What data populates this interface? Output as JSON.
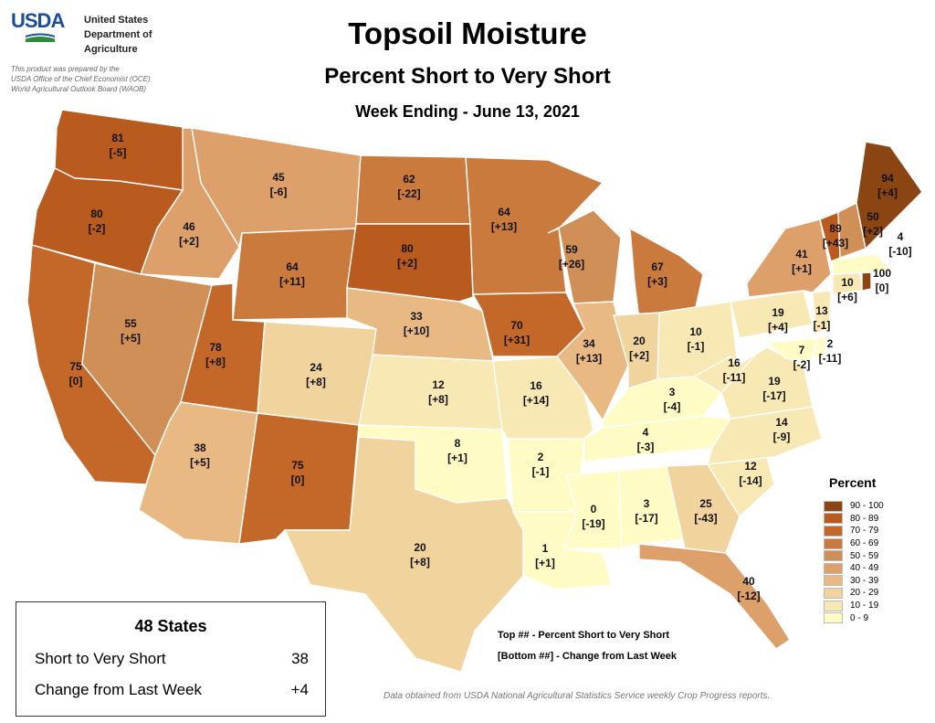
{
  "logo": {
    "name": "USDA",
    "agency_lines": [
      "United States",
      "Department of",
      "Agriculture"
    ],
    "prepared_lines": [
      "This product was prepared by the",
      "USDA Office of the Chief Economist (OCE)",
      "World Agricultural Outlook Board (WAOB)"
    ]
  },
  "title": "Topsoil Moisture",
  "subtitle": "Percent Short to Very Short",
  "week": "Week Ending - June 13, 2021",
  "legend": {
    "title": "Percent",
    "items": [
      {
        "label": "90 - 100",
        "color": "#8b4513"
      },
      {
        "label": "80 - 89",
        "color": "#b95a1e"
      },
      {
        "label": "70 - 79",
        "color": "#c4682a"
      },
      {
        "label": "60 - 69",
        "color": "#c97a3c"
      },
      {
        "label": "50 - 59",
        "color": "#d18f58"
      },
      {
        "label": "40 - 49",
        "color": "#dea06a"
      },
      {
        "label": "30 - 39",
        "color": "#e8b983"
      },
      {
        "label": "20 - 29",
        "color": "#f1d39e"
      },
      {
        "label": "10 - 19",
        "color": "#f8e8b4"
      },
      {
        "label": "0 - 9",
        "color": "#fffbc4"
      }
    ]
  },
  "states": [
    {
      "abbr": "WA",
      "value": "81",
      "change": "[-5]",
      "color": "#b95a1e"
    },
    {
      "abbr": "OR",
      "value": "80",
      "change": "[-2]",
      "color": "#b95a1e"
    },
    {
      "abbr": "CA",
      "value": "75",
      "change": "[0]",
      "color": "#c4682a"
    },
    {
      "abbr": "ID",
      "value": "46",
      "change": "[+2]",
      "color": "#dea06a"
    },
    {
      "abbr": "NV",
      "value": "55",
      "change": "[+5]",
      "color": "#d18f58"
    },
    {
      "abbr": "MT",
      "value": "45",
      "change": "[-6]",
      "color": "#dea06a"
    },
    {
      "abbr": "WY",
      "value": "64",
      "change": "[+11]",
      "color": "#c97a3c"
    },
    {
      "abbr": "UT",
      "value": "78",
      "change": "[+8]",
      "color": "#c4682a"
    },
    {
      "abbr": "AZ",
      "value": "38",
      "change": "[+5]",
      "color": "#e8b983"
    },
    {
      "abbr": "CO",
      "value": "24",
      "change": "[+8]",
      "color": "#f1d39e"
    },
    {
      "abbr": "NM",
      "value": "75",
      "change": "[0]",
      "color": "#c4682a"
    },
    {
      "abbr": "ND",
      "value": "62",
      "change": "[-22]",
      "color": "#c97a3c"
    },
    {
      "abbr": "SD",
      "value": "80",
      "change": "[+2]",
      "color": "#b95a1e"
    },
    {
      "abbr": "NE",
      "value": "33",
      "change": "[+10]",
      "color": "#e8b983"
    },
    {
      "abbr": "KS",
      "value": "12",
      "change": "[+8]",
      "color": "#f8e8b4"
    },
    {
      "abbr": "OK",
      "value": "8",
      "change": "[+1]",
      "color": "#fffbc4"
    },
    {
      "abbr": "TX",
      "value": "20",
      "change": "[+8]",
      "color": "#f1d39e"
    },
    {
      "abbr": "MN",
      "value": "64",
      "change": "[+13]",
      "color": "#c97a3c"
    },
    {
      "abbr": "IA",
      "value": "70",
      "change": "[+31]",
      "color": "#c4682a"
    },
    {
      "abbr": "MO",
      "value": "16",
      "change": "[+14]",
      "color": "#f8e8b4"
    },
    {
      "abbr": "AR",
      "value": "2",
      "change": "[-1]",
      "color": "#fffbc4"
    },
    {
      "abbr": "LA",
      "value": "1",
      "change": "[+1]",
      "color": "#fffbc4"
    },
    {
      "abbr": "WI",
      "value": "59",
      "change": "[+26]",
      "color": "#d18f58"
    },
    {
      "abbr": "IL",
      "value": "34",
      "change": "[+13]",
      "color": "#e8b983"
    },
    {
      "abbr": "MI",
      "value": "67",
      "change": "[+3]",
      "color": "#c97a3c"
    },
    {
      "abbr": "IN",
      "value": "20",
      "change": "[+2]",
      "color": "#f1d39e"
    },
    {
      "abbr": "OH",
      "value": "10",
      "change": "[-1]",
      "color": "#f8e8b4"
    },
    {
      "abbr": "KY",
      "value": "3",
      "change": "[-4]",
      "color": "#fffbc4"
    },
    {
      "abbr": "TN",
      "value": "4",
      "change": "[-3]",
      "color": "#fffbc4"
    },
    {
      "abbr": "MS",
      "value": "0",
      "change": "[-19]",
      "color": "#fffbc4"
    },
    {
      "abbr": "AL",
      "value": "3",
      "change": "[-17]",
      "color": "#fffbc4"
    },
    {
      "abbr": "GA",
      "value": "25",
      "change": "[-43]",
      "color": "#f1d39e"
    },
    {
      "abbr": "FL",
      "value": "40",
      "change": "[-12]",
      "color": "#dea06a"
    },
    {
      "abbr": "SC",
      "value": "12",
      "change": "[-14]",
      "color": "#f8e8b4"
    },
    {
      "abbr": "NC",
      "value": "14",
      "change": "[-9]",
      "color": "#f8e8b4"
    },
    {
      "abbr": "VA",
      "value": "19",
      "change": "[-17]",
      "color": "#f8e8b4"
    },
    {
      "abbr": "WV",
      "value": "16",
      "change": "[-11]",
      "color": "#f8e8b4"
    },
    {
      "abbr": "PA",
      "value": "19",
      "change": "[+4]",
      "color": "#f8e8b4"
    },
    {
      "abbr": "NY",
      "value": "41",
      "change": "[+1]",
      "color": "#dea06a"
    },
    {
      "abbr": "MD",
      "value": "7",
      "change": "[-2]",
      "color": "#fffbc4"
    },
    {
      "abbr": "DE",
      "value": "2",
      "change": "[-11]",
      "color": "#fffbc4"
    },
    {
      "abbr": "NJ",
      "value": "13",
      "change": "[-1]",
      "color": "#f8e8b4"
    },
    {
      "abbr": "CT",
      "value": "10",
      "change": "[+6]",
      "color": "#f8e8b4"
    },
    {
      "abbr": "RI",
      "value": "100",
      "change": "[0]",
      "color": "#8b4513"
    },
    {
      "abbr": "MA",
      "value": "4",
      "change": "[-10]",
      "color": "#fffbc4"
    },
    {
      "abbr": "VT",
      "value": "89",
      "change": "[+43]",
      "color": "#b95a1e"
    },
    {
      "abbr": "NH",
      "value": "50",
      "change": "[+2]",
      "color": "#d18f58"
    },
    {
      "abbr": "ME",
      "value": "94",
      "change": "[+4]",
      "color": "#8b4513"
    }
  ],
  "notes": {
    "top": "Top ## - Percent Short to Very Short",
    "bottom": "[Bottom ##] - Change from Last Week"
  },
  "summary": {
    "heading": "48 States",
    "rows": [
      {
        "label": "Short to Very Short",
        "value": "38"
      },
      {
        "label": "Change from Last Week",
        "value": "+4"
      }
    ]
  },
  "source": "Data obtained from USDA National Agricultural Statistics Service weekly Crop Progress reports."
}
